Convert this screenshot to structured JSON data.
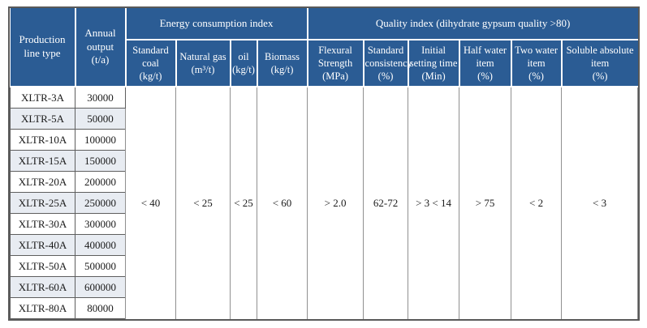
{
  "colors": {
    "header_bg": "#2b5c94",
    "header_text": "#ffffff",
    "stripe_bg": "#e8ecf2",
    "outer_border": "#595959",
    "grid_dark": "#5e5e5e",
    "grid_light": "#909090",
    "body_text": "#1a1a1a"
  },
  "table": {
    "header": {
      "production_line": "Production line type",
      "annual_output_label": "Annual output",
      "annual_output_unit": "(t/a)",
      "groups": [
        {
          "label": "Energy consumption index"
        },
        {
          "label": "Quality index (dihydrate gypsum quality >80)"
        }
      ],
      "columns": [
        {
          "label": "Standard coal",
          "unit": "(kg/t)"
        },
        {
          "label": "Natural gas",
          "unit": "(m³/t)"
        },
        {
          "label": "oil",
          "unit": "(kg/t)"
        },
        {
          "label": "Biomass",
          "unit": "(kg/t)"
        },
        {
          "label": "Flexural Strength",
          "unit": "(MPa)"
        },
        {
          "label": "Standard consistency",
          "unit": "(%)"
        },
        {
          "label": "Initial setting time",
          "unit": "(Min)"
        },
        {
          "label": "Half water item",
          "unit": "(%)"
        },
        {
          "label": "Two water item",
          "unit": "(%)"
        },
        {
          "label": "Soluble absolute item",
          "unit": "(%)"
        }
      ]
    },
    "rows": [
      {
        "type": "XLTR-3A",
        "output": "30000"
      },
      {
        "type": "XLTR-5A",
        "output": "50000"
      },
      {
        "type": "XLTR-10A",
        "output": "100000"
      },
      {
        "type": "XLTR-15A",
        "output": "150000"
      },
      {
        "type": "XLTR-20A",
        "output": "200000"
      },
      {
        "type": "XLTR-25A",
        "output": "250000"
      },
      {
        "type": "XLTR-30A",
        "output": "300000"
      },
      {
        "type": "XLTR-40A",
        "output": "400000"
      },
      {
        "type": "XLTR-50A",
        "output": "500000"
      },
      {
        "type": "XLTR-60A",
        "output": "600000"
      },
      {
        "type": "XLTR-80A",
        "output": "80000"
      }
    ],
    "span_values": [
      "< 40",
      "< 25",
      "< 25",
      "< 60",
      "> 2.0",
      "62-72",
      "> 3 < 14",
      "> 75",
      "< 2",
      "< 3"
    ]
  }
}
